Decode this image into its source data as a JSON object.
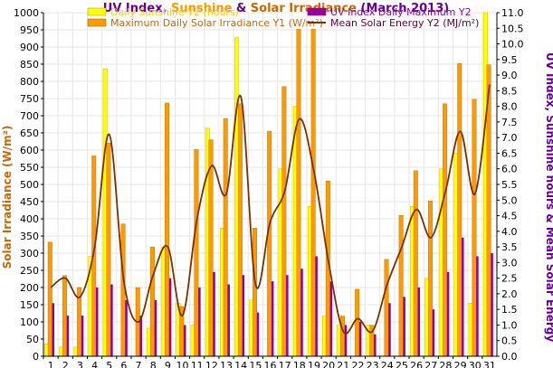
{
  "chart_data": {
    "type": "bar",
    "title": {
      "parts": [
        {
          "text": "UV Index",
          "color": "#660099"
        },
        {
          "text": ", ",
          "color": "#660099"
        },
        {
          "text": "Sunshine",
          "color": "#FF9900"
        },
        {
          "text": " & ",
          "color": "#660099"
        },
        {
          "text": "Solar Irradiance",
          "color": "#CC6600"
        },
        {
          "text": " (March 2013)",
          "color": "#660099"
        }
      ]
    },
    "ylabel_left": "Solar Irradiance (W/m²)",
    "ylabel_right": "UV Index, Sunshine hours & Mean Solar Energy",
    "ylim_left": [
      0,
      1000
    ],
    "ylim_right": [
      0,
      11
    ],
    "yticks_left": [
      "0",
      "50",
      "100",
      "150",
      "200",
      "250",
      "300",
      "350",
      "400",
      "450",
      "500",
      "550",
      "600",
      "650",
      "700",
      "750",
      "800",
      "850",
      "900",
      "950",
      "1000"
    ],
    "yticks_right": [
      "0.0",
      "0.5",
      "1.0",
      "1.5",
      "2.0",
      "2.5",
      "3.0",
      "3.5",
      "4.0",
      "4.5",
      "5.0",
      "5.5",
      "6.0",
      "6.5",
      "7.0",
      "7.5",
      "8.0",
      "8.5",
      "9.0",
      "9.5",
      "10.0",
      "10.5",
      "11.0"
    ],
    "categories": [
      "1",
      "2",
      "3",
      "4",
      "5",
      "6",
      "7",
      "8",
      "9",
      "10",
      "11",
      "12",
      "13",
      "14",
      "15",
      "16",
      "17",
      "18",
      "19",
      "20",
      "21",
      "22",
      "23",
      "24",
      "25",
      "26",
      "27",
      "28",
      "29",
      "30",
      "31"
    ],
    "colors": {
      "sunshine": "#FFFF00",
      "irradiance": "#FF9900",
      "uv": "#990099",
      "energy": "#7A3000",
      "left_axis_title": "#CC6600",
      "right_axis_title": "#660099"
    },
    "series": [
      {
        "name": "Daily Sunshine Y2 (hours)",
        "axis": "right",
        "kind": "bar",
        "values": [
          0.4,
          0.3,
          0.3,
          3.2,
          9.2,
          0.0,
          0.0,
          0.9,
          3.5,
          1.7,
          1.0,
          7.3,
          4.1,
          10.2,
          1.8,
          0.0,
          6.0,
          8.0,
          4.8,
          1.3,
          1.0,
          0.0,
          1.0,
          0.0,
          0.0,
          4.8,
          2.5,
          6.0,
          6.5,
          1.7,
          11.0
        ]
      },
      {
        "name": "Maximum Daily Solar Irradiance Y1 (W/m²)",
        "axis": "left",
        "kind": "bar",
        "values": [
          332,
          235,
          200,
          583,
          620,
          385,
          200,
          318,
          737,
          145,
          602,
          630,
          692,
          735,
          373,
          655,
          785,
          952,
          952,
          510,
          117,
          195,
          90,
          282,
          410,
          540,
          452,
          735,
          852,
          748,
          848
        ]
      },
      {
        "name": "UV Index Daily Maximum Y2",
        "axis": "right",
        "kind": "bar",
        "values": [
          1.7,
          1.3,
          1.3,
          2.2,
          2.3,
          1.8,
          1.3,
          1.8,
          2.5,
          1.0,
          2.2,
          2.7,
          2.3,
          2.6,
          1.4,
          2.4,
          2.6,
          2.8,
          3.2,
          2.4,
          1.0,
          1.1,
          0.7,
          1.7,
          1.9,
          2.2,
          1.5,
          2.7,
          3.8,
          3.2,
          3.3
        ]
      },
      {
        "name": "Mean Solar Energy Y2 (MJ/m²)",
        "axis": "right",
        "kind": "line",
        "values": [
          2.2,
          2.5,
          1.9,
          3.5,
          7.1,
          2.4,
          1.1,
          2.6,
          3.5,
          1.3,
          4.4,
          6.1,
          5.2,
          8.3,
          2.3,
          4.3,
          5.3,
          7.6,
          5.9,
          3.0,
          0.8,
          1.2,
          0.8,
          2.3,
          3.5,
          4.7,
          3.8,
          5.3,
          7.2,
          5.2,
          8.7
        ]
      }
    ],
    "legend_placement": "top"
  }
}
